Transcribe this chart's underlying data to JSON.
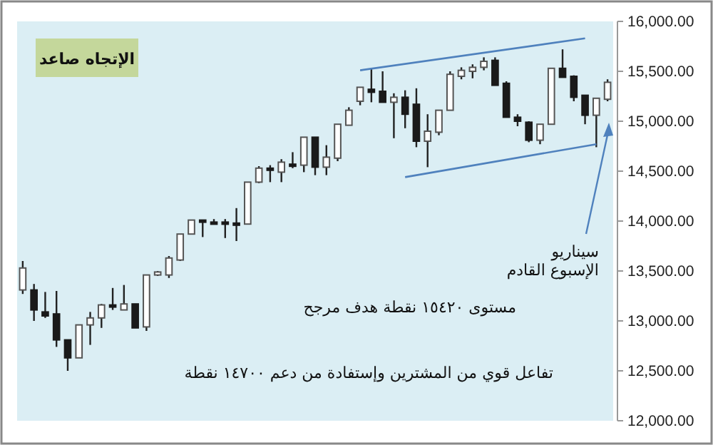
{
  "chart_data": {
    "type": "candlestick",
    "categories": [
      null,
      null,
      null,
      null,
      null,
      null,
      null,
      null,
      null,
      null,
      null,
      null,
      null,
      null,
      null,
      null,
      null,
      null,
      null,
      null,
      null,
      null,
      null,
      null,
      null,
      null,
      null,
      null,
      null,
      null,
      null,
      null,
      null,
      null,
      null,
      null,
      null,
      null,
      null,
      null,
      null,
      null,
      null,
      null,
      null,
      null,
      null,
      null,
      null,
      null,
      null,
      null,
      null
    ],
    "ohlc": [
      [
        13310,
        13600,
        13270,
        13530
      ],
      [
        13310,
        13370,
        13000,
        13110
      ],
      [
        13090,
        13290,
        13030,
        13050
      ],
      [
        13070,
        13300,
        12740,
        12810
      ],
      [
        12810,
        12810,
        12500,
        12630
      ],
      [
        12630,
        12960,
        12630,
        12960
      ],
      [
        12960,
        13090,
        12760,
        13030
      ],
      [
        13030,
        13170,
        12930,
        13160
      ],
      [
        13160,
        13330,
        13110,
        13140
      ],
      [
        13110,
        13360,
        13110,
        13170
      ],
      [
        13170,
        13170,
        12930,
        12930
      ],
      [
        12940,
        13460,
        12900,
        13460
      ],
      [
        13460,
        13500,
        13450,
        13490
      ],
      [
        13460,
        13650,
        13430,
        13630
      ],
      [
        13610,
        13870,
        13600,
        13870
      ],
      [
        13870,
        14010,
        13870,
        14010
      ],
      [
        14010,
        14010,
        13840,
        13990
      ],
      [
        13990,
        14020,
        13970,
        13980
      ],
      [
        13990,
        14020,
        13830,
        13970
      ],
      [
        13980,
        14130,
        13800,
        13970
      ],
      [
        13970,
        14390,
        13970,
        14390
      ],
      [
        14390,
        14550,
        14380,
        14530
      ],
      [
        14530,
        14560,
        14390,
        14510
      ],
      [
        14490,
        14620,
        14390,
        14590
      ],
      [
        14570,
        14690,
        14530,
        14560
      ],
      [
        14560,
        14840,
        14490,
        14840
      ],
      [
        14840,
        14840,
        14460,
        14540
      ],
      [
        14540,
        14760,
        14460,
        14640
      ],
      [
        14630,
        14970,
        14600,
        14970
      ],
      [
        14960,
        15140,
        14960,
        15110
      ],
      [
        15200,
        15340,
        15160,
        15340
      ],
      [
        15320,
        15530,
        15190,
        15290
      ],
      [
        15300,
        15500,
        15190,
        15190
      ],
      [
        15190,
        15280,
        14830,
        15240
      ],
      [
        15240,
        15310,
        14930,
        15070
      ],
      [
        15170,
        15330,
        14740,
        14800
      ],
      [
        14800,
        15070,
        14540,
        14900
      ],
      [
        14890,
        15110,
        14860,
        15110
      ],
      [
        15110,
        15500,
        15110,
        15470
      ],
      [
        15450,
        15540,
        15420,
        15510
      ],
      [
        15500,
        15570,
        15430,
        15540
      ],
      [
        15540,
        15640,
        15510,
        15600
      ],
      [
        15610,
        15640,
        15360,
        15360
      ],
      [
        15380,
        15400,
        15040,
        15040
      ],
      [
        15040,
        15070,
        14950,
        15000
      ],
      [
        14990,
        15000,
        14790,
        14810
      ],
      [
        14810,
        14970,
        14770,
        14970
      ],
      [
        14970,
        15530,
        14970,
        15530
      ],
      [
        15530,
        15720,
        15440,
        15440
      ],
      [
        15450,
        15460,
        15200,
        15240
      ],
      [
        15260,
        15260,
        14970,
        15060
      ],
      [
        15060,
        15230,
        14740,
        15230
      ],
      [
        15220,
        15420,
        15200,
        15390
      ]
    ],
    "series": [
      {
        "type": "line",
        "color": "#4f81bd",
        "values": [
          null,
          null,
          null,
          null,
          null,
          null,
          null,
          null,
          null,
          null,
          null,
          null,
          null,
          null,
          null,
          null,
          null,
          null,
          null,
          null,
          null,
          null,
          null,
          null,
          null,
          null,
          null,
          null,
          null,
          null,
          15510,
          null,
          null,
          null,
          null,
          null,
          null,
          null,
          null,
          null,
          null,
          null,
          null,
          null,
          null,
          null,
          null,
          null,
          null,
          null,
          15830,
          null,
          null
        ]
      },
      {
        "type": "line",
        "color": "#4f81bd",
        "values": [
          null,
          null,
          null,
          null,
          null,
          null,
          null,
          null,
          null,
          null,
          null,
          null,
          null,
          null,
          null,
          null,
          null,
          null,
          null,
          null,
          null,
          null,
          null,
          null,
          null,
          null,
          null,
          null,
          null,
          null,
          null,
          null,
          null,
          null,
          14440,
          null,
          null,
          null,
          null,
          null,
          null,
          null,
          null,
          null,
          null,
          null,
          null,
          null,
          null,
          null,
          null,
          14770,
          null
        ]
      }
    ],
    "ylim": [
      12000,
      16000
    ],
    "yticks": [
      {
        "value": 12000,
        "label": "12,000.00"
      },
      {
        "value": 12500,
        "label": "12,500.00"
      },
      {
        "value": 13000,
        "label": "13,000.00"
      },
      {
        "value": 13500,
        "label": "13,500.00"
      },
      {
        "value": 14000,
        "label": "14,000.00"
      },
      {
        "value": 14500,
        "label": "14,500.00"
      },
      {
        "value": 15000,
        "label": "15,000.00"
      },
      {
        "value": 15500,
        "label": "15,500.00"
      },
      {
        "value": 16000,
        "label": "16,000.00"
      }
    ],
    "tick_labels": "y",
    "grid": false,
    "annotations": [
      "الإتجاه صاعد",
      "سيناريو\nالإسبوع القادم",
      "مستوى ١٥٤٢٠ نقطة هدف مرجح",
      "تفاعل قوي من المشترين وإستفادة من دعم ١٤٧٠٠ نقطة"
    ]
  }
}
